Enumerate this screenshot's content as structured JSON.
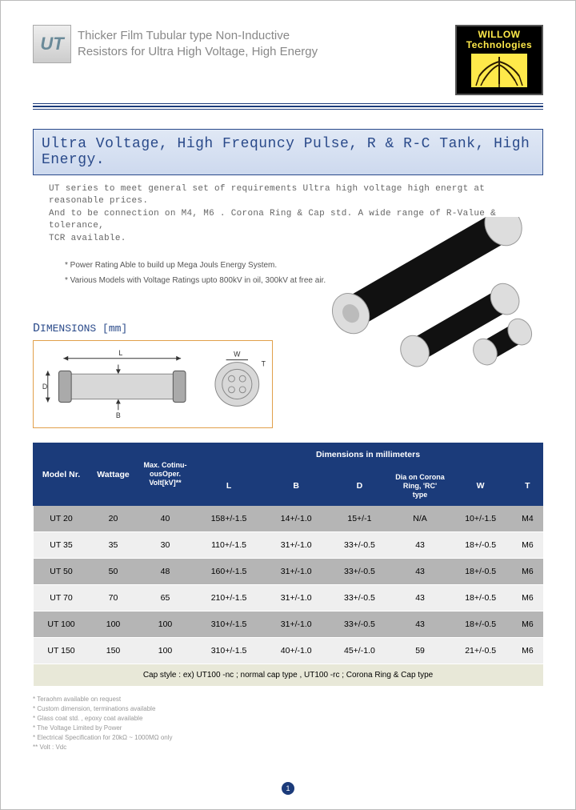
{
  "brand": {
    "name1": "WILLOW",
    "name2": "Technologies"
  },
  "ut_icon_label": "UT",
  "title_line1": "Thicker Film Tubular type Non-Inductive",
  "title_line2": "Resistors for Ultra High Voltage, High Energy",
  "hero": "Ultra Voltage, High Frequncy Pulse, R & R-C Tank, High Energy.",
  "intro_line1": "UT series to meet general set of requirements Ultra high voltage high energt  at reasonable prices.",
  "intro_line2": "And to be connection on M4, M6 .   Corona Ring & Cap  std.   A wide range of R-Value & tolerance,",
  "intro_line3": "TCR available.",
  "bullets": {
    "b1": "* Power Rating Able to build up Mega Jouls Energy System.",
    "b2": "* Various Models with Voltage Ratings upto 800kV in oil, 300kV at free air."
  },
  "dims_label_pre": "D",
  "dims_label_rest": "IMENSIONS [mm]",
  "diagram_labels": {
    "L": "L",
    "B": "B",
    "D": "D",
    "W": "W",
    "T": "T"
  },
  "table": {
    "header_top": {
      "model": "Model Nr.",
      "wattage": "Wattage",
      "maxvolt": "Max. Cotinu- ousOper. Volt[kV]**",
      "dims_group": "Dimensions in millimeters"
    },
    "header_sub": {
      "L": "L",
      "B": "B",
      "D": "D",
      "corona": "Dia on Corona Ring, 'RC' type",
      "W": "W",
      "T": "T"
    },
    "rows": [
      {
        "model": "UT 20",
        "watt": "20",
        "kv": "40",
        "L": "158+/-1.5",
        "B": "14+/-1.0",
        "D": "15+/-1",
        "corona": "N/A",
        "W": "10+/-1.5",
        "T": "M4",
        "alt": true
      },
      {
        "model": "UT 35",
        "watt": "35",
        "kv": "30",
        "L": "110+/-1.5",
        "B": "31+/-1.0",
        "D": "33+/-0.5",
        "corona": "43",
        "W": "18+/-0.5",
        "T": "M6",
        "alt": false
      },
      {
        "model": "UT 50",
        "watt": "50",
        "kv": "48",
        "L": "160+/-1.5",
        "B": "31+/-1.0",
        "D": "33+/-0.5",
        "corona": "43",
        "W": "18+/-0.5",
        "T": "M6",
        "alt": true
      },
      {
        "model": "UT 70",
        "watt": "70",
        "kv": "65",
        "L": "210+/-1.5",
        "B": "31+/-1.0",
        "D": "33+/-0.5",
        "corona": "43",
        "W": "18+/-0.5",
        "T": "M6",
        "alt": false
      },
      {
        "model": "UT 100",
        "watt": "100",
        "kv": "100",
        "L": "310+/-1.5",
        "B": "31+/-1.0",
        "D": "33+/-0.5",
        "corona": "43",
        "W": "18+/-0.5",
        "T": "M6",
        "alt": true
      },
      {
        "model": "UT 150",
        "watt": "150",
        "kv": "100",
        "L": "310+/-1.5",
        "B": "40+/-1.0",
        "D": "45+/-1.0",
        "corona": "59",
        "W": "21+/-0.5",
        "T": "M6",
        "alt": false
      }
    ],
    "footer": "Cap  style :   ex)  UT100  -nc ; normal cap type ,     UT100 -rc ;  Corona Ring & Cap type"
  },
  "notes": {
    "n1": "*  Teraohm available on request",
    "n2": "*  Custom dimension,  terminations available",
    "n3": "*  Glass coat  std. ,  epoxy coat available",
    "n4": "*  The Voltage Limited by Power",
    "n5": "*  Electrical Specification  for 20kΩ ~ 1000MΩ only",
    "n6": "**  Volt : Vdc"
  },
  "page_number": "1",
  "colors": {
    "navy": "#1b3b7a",
    "alt_row": "#b5b5b5",
    "norm_row": "#efefef",
    "logo_yellow": "#ffe94a",
    "diagram_border": "#e1a04a"
  }
}
